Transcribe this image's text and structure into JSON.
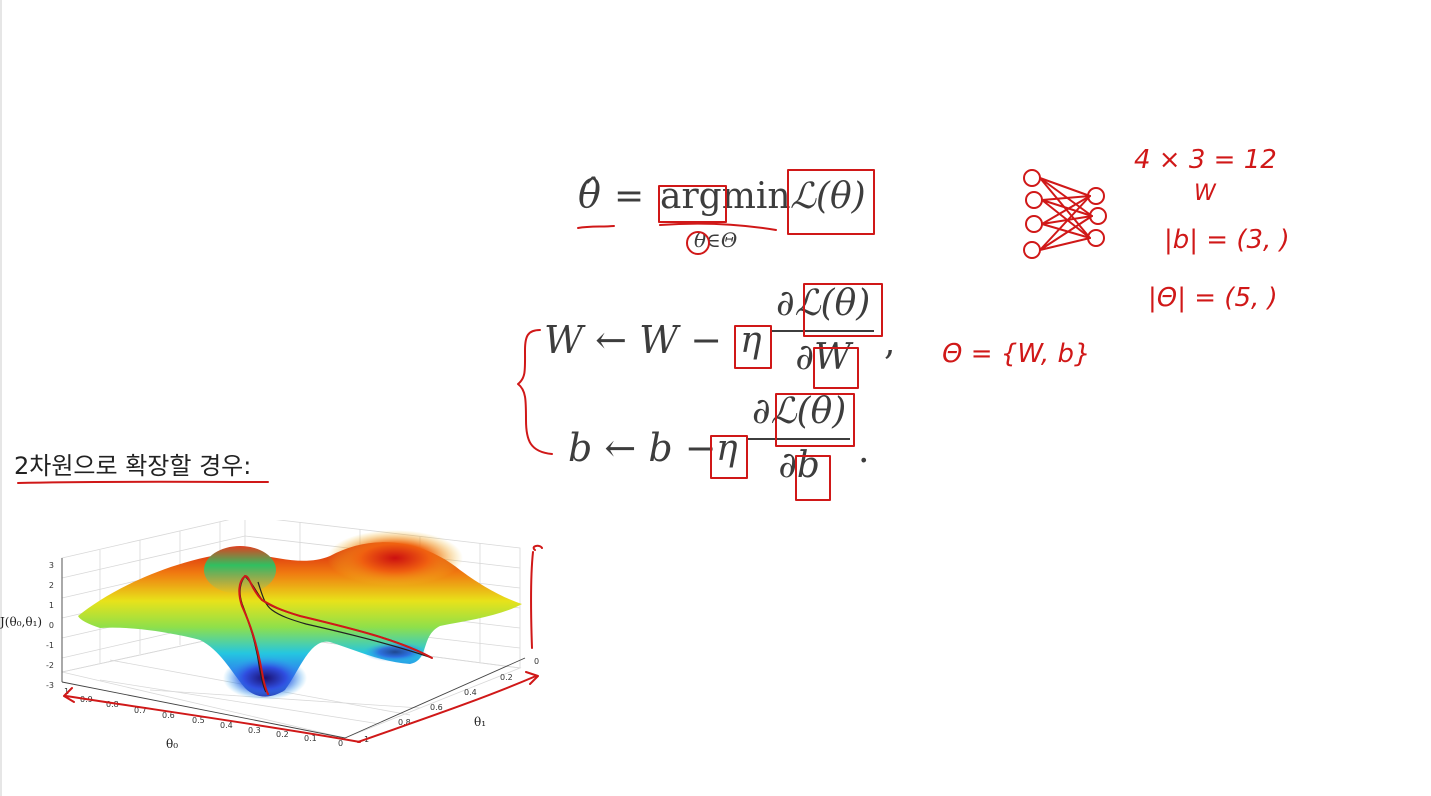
{
  "equation_1": {
    "lhs": "θ̂",
    "eq": "=",
    "op": "argmin",
    "subscript": "θ∈Θ",
    "loss": "ℒ(θ)"
  },
  "update_w": {
    "lhs": "W",
    "arrow": "←",
    "rhs": "W",
    "minus": "−",
    "lr": "η",
    "num": "∂ℒ(θ)",
    "den": "∂W",
    "punct": ","
  },
  "update_b": {
    "lhs": "b",
    "arrow": "←",
    "rhs": "b",
    "minus": "−",
    "lr": "η",
    "num": "∂ℒ(θ)",
    "den": "∂b",
    "punct": "."
  },
  "annotations": {
    "theta_set": "Θ = {W, b}",
    "param_count": "4 × 3 = 12",
    "w_label": "W",
    "b_shape": "|b| = (3, )",
    "theta_shape": "|Θ| = (5, )"
  },
  "heading": "2차원으로 확장할 경우:",
  "surface_plot": {
    "z_label": "J(θ₀,θ₁)",
    "x_label": "θ₀",
    "y_label": "θ₁",
    "z_ticks": [
      "3",
      "2",
      "1",
      "0",
      "-1",
      "-2",
      "-3"
    ],
    "x_ticks": [
      "1",
      "0.9",
      "0.8",
      "0.7",
      "0.6",
      "0.5",
      "0.4",
      "0.3",
      "0.2",
      "0.1",
      "0"
    ],
    "y_ticks": [
      "0",
      "0.2",
      "0.4",
      "0.6",
      "0.8",
      "1"
    ]
  },
  "colors": {
    "ink": "#d01818",
    "text": "#3d3d3d"
  }
}
